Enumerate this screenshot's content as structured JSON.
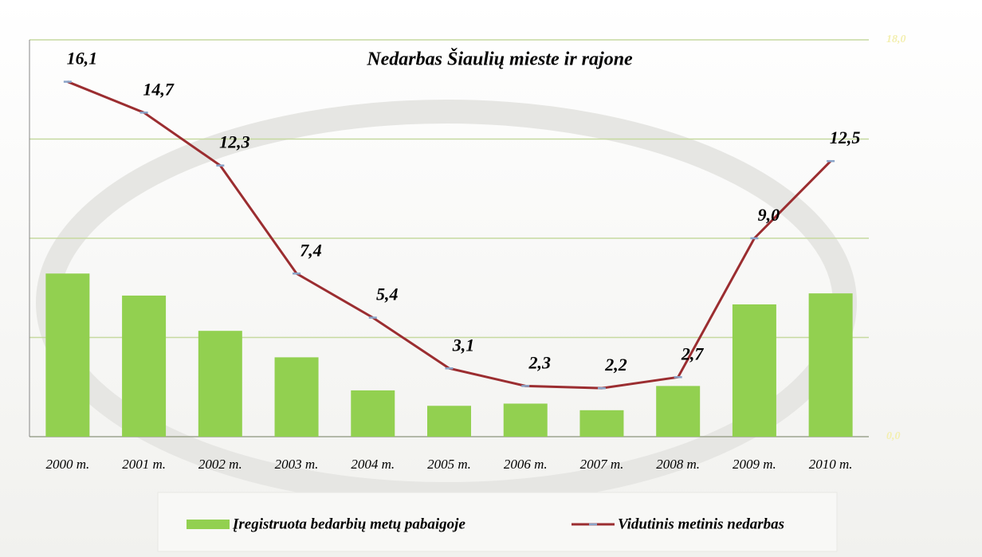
{
  "chart_data": {
    "type": "bar-line",
    "title": "Nedarbas Šiaulių mieste ir rajone",
    "categories": [
      "2000 m.",
      "2001 m.",
      "2002 m.",
      "2003 m.",
      "2004 m.",
      "2005 m.",
      "2006 m.",
      "2007 m.",
      "2008 m.",
      "2009 m.",
      "2010 m."
    ],
    "series": [
      {
        "name": "Įregistruota bedarbių metų pabaigoje",
        "type": "bar",
        "color": "#92d050",
        "values": [
          7.4,
          6.4,
          4.8,
          3.6,
          2.1,
          1.4,
          1.5,
          1.2,
          2.3,
          6.0,
          6.5
        ]
      },
      {
        "name": "Vidutinis metinis nedarbas",
        "type": "line",
        "axis": "y2",
        "color": "#9b2d30",
        "values": [
          16.1,
          14.7,
          12.3,
          7.4,
          5.4,
          3.1,
          2.3,
          2.2,
          2.7,
          9.0,
          12.5
        ],
        "value_labels": [
          "16,1",
          "14,7",
          "12,3",
          "7,4",
          "5,4",
          "3,1",
          "2,3",
          "2,2",
          "2,7",
          "9,0",
          "12,5"
        ]
      }
    ],
    "ylim": [
      0,
      18
    ],
    "yticks": [
      0,
      4.5,
      9,
      13.5,
      18
    ],
    "y2lim": [
      0,
      18
    ],
    "y2ticks": [
      {
        "value": 0,
        "label": "0,0"
      },
      {
        "value": 18,
        "label": "18,0"
      }
    ],
    "grid": true
  }
}
